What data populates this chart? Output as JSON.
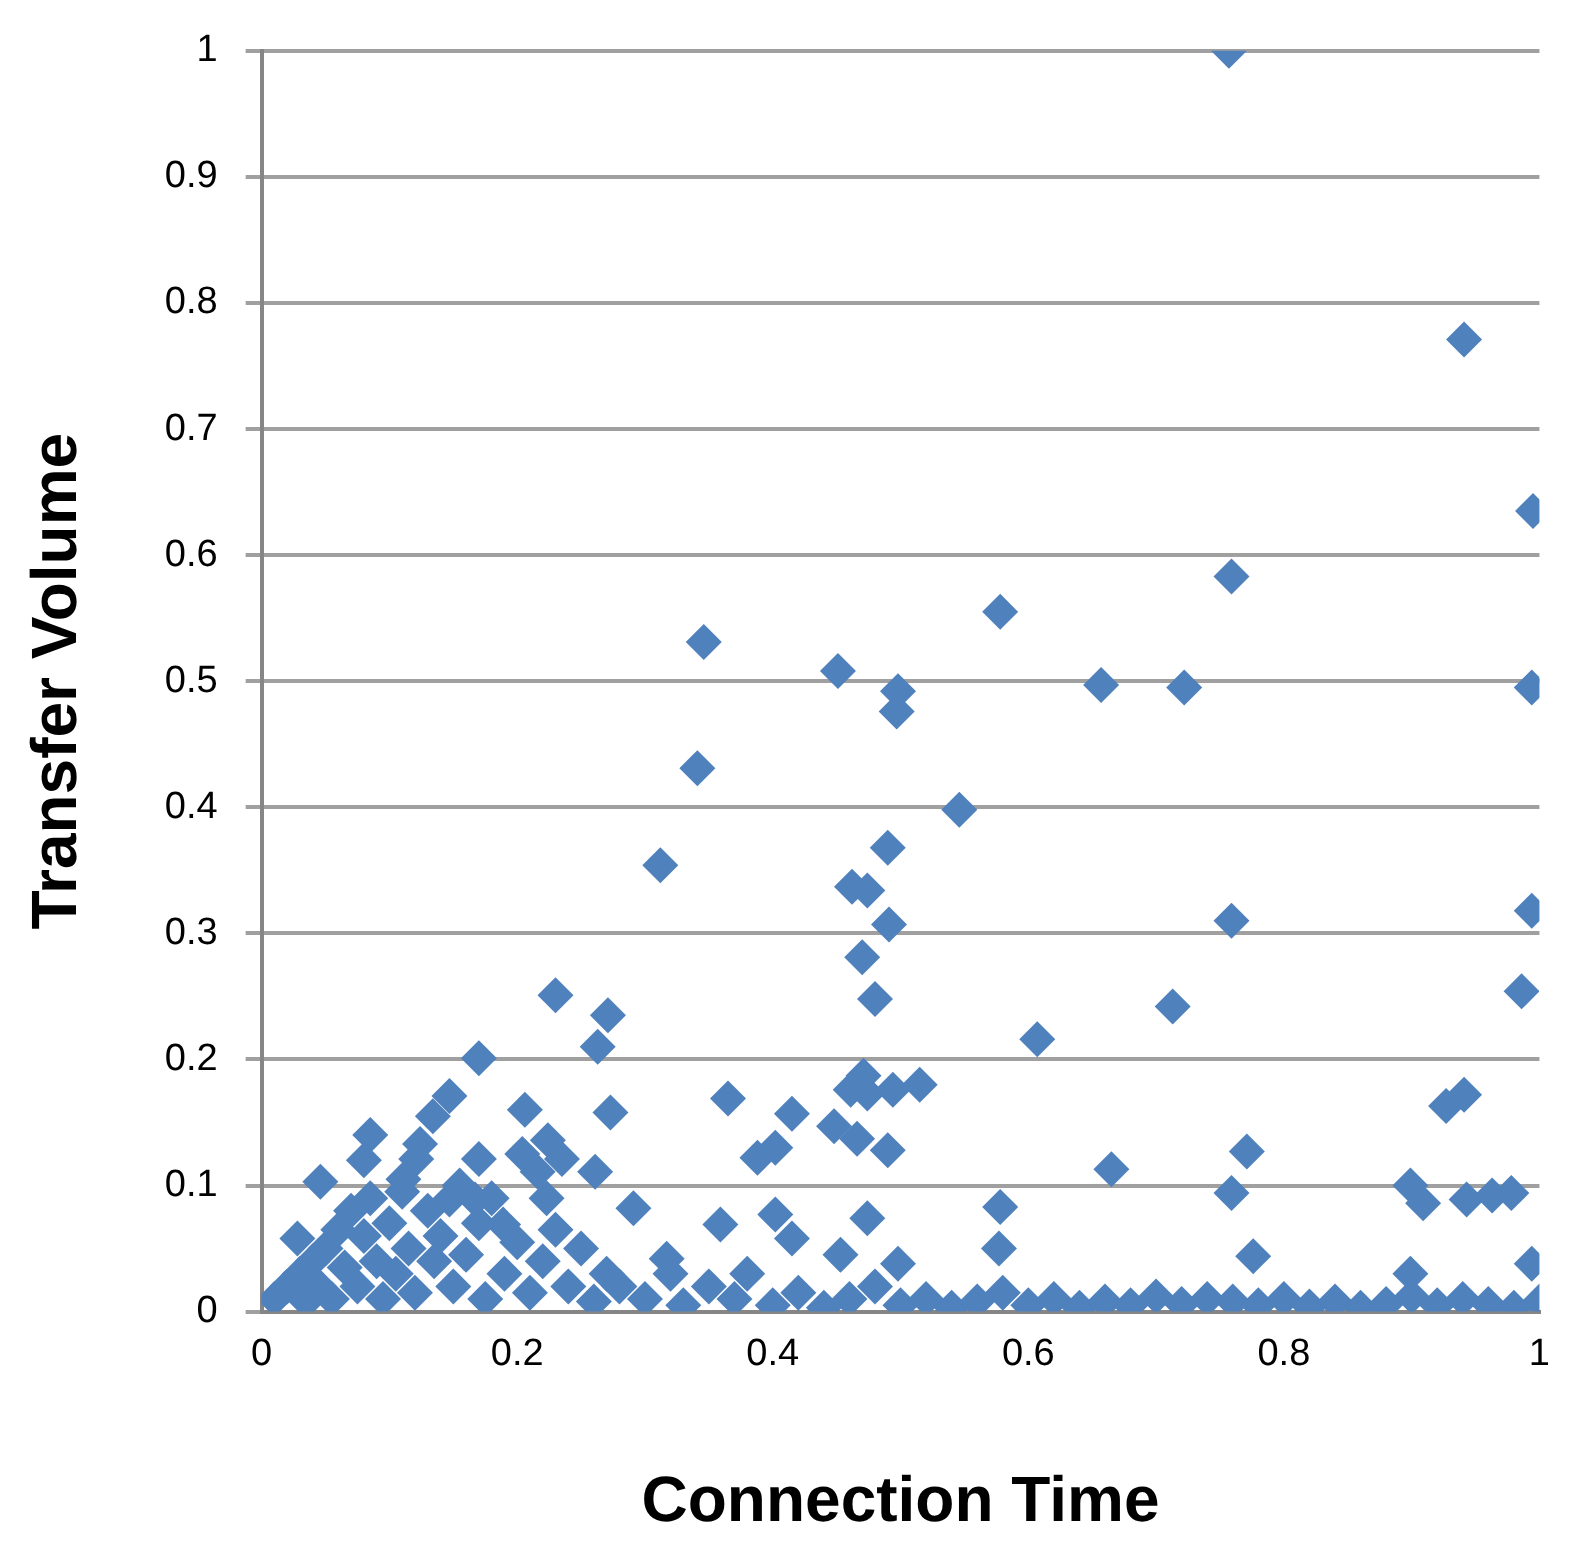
{
  "chart_data": {
    "type": "scatter",
    "xlabel": "Connection Time",
    "ylabel": "Transfer Volume",
    "marker": "diamond",
    "grid": "y",
    "legend": false,
    "xlim": [
      0,
      1
    ],
    "xticks": [
      0,
      0.2,
      0.4,
      0.6,
      0.8,
      1
    ],
    "ylim": [
      0,
      1
    ],
    "yticks": [
      0,
      0.1,
      0.2,
      0.3,
      0.4,
      0.5,
      0.6,
      0.7,
      0.8,
      0.9,
      1
    ],
    "series": [
      {
        "color": "#4f81bd",
        "x": [
          0.757,
          0.941,
          0.995,
          0.346,
          0.451,
          0.578,
          0.759,
          0.498,
          0.497,
          0.657,
          0.722,
          0.994,
          0.341,
          0.546,
          0.312,
          0.49,
          0.462,
          0.474,
          0.491,
          0.759,
          0.994,
          0.47,
          0.48,
          0.986,
          0.713,
          0.23,
          0.271,
          0.607,
          0.365,
          0.17,
          0.263,
          0.206,
          0.147,
          0.134,
          0.273,
          0.415,
          0.927,
          0.941,
          0.771,
          0.665,
          0.471,
          0.461,
          0.474,
          0.494,
          0.515,
          0.448,
          0.466,
          0.49,
          0.388,
          0.402,
          0.474,
          0.291,
          0.216,
          0.17,
          0.121,
          0.085,
          0.124,
          0.046,
          0.224,
          0.261,
          0.359,
          0.317,
          0.402,
          0.08,
          0.111,
          0.147,
          0.223,
          0.204,
          0.235,
          0.167,
          0.189,
          0.028,
          0.759,
          0.899,
          0.909,
          0.943,
          0.963,
          0.978,
          0.578,
          0.577,
          0.453,
          0.498,
          0.776,
          0.994,
          0.415,
          0.899,
          0.01,
          0.02,
          0.03,
          0.035,
          0.04,
          0.045,
          0.05,
          0.055,
          0.06,
          0.065,
          0.07,
          0.075,
          0.08,
          0.085,
          0.09,
          0.095,
          0.1,
          0.105,
          0.11,
          0.115,
          0.12,
          0.13,
          0.135,
          0.14,
          0.15,
          0.155,
          0.16,
          0.17,
          0.175,
          0.18,
          0.19,
          0.2,
          0.21,
          0.22,
          0.23,
          0.24,
          0.25,
          0.26,
          0.27,
          0.28,
          0.3,
          0.32,
          0.33,
          0.35,
          0.37,
          0.38,
          0.4,
          0.42,
          0.44,
          0.46,
          0.48,
          0.5,
          0.52,
          0.54,
          0.56,
          0.58,
          0.6,
          0.62,
          0.64,
          0.66,
          0.68,
          0.7,
          0.72,
          0.74,
          0.76,
          0.78,
          0.8,
          0.82,
          0.84,
          0.86,
          0.88,
          0.9,
          0.92,
          0.94,
          0.96,
          0.98,
          1
        ],
        "values": [
          1,
          0.771,
          0.635,
          0.531,
          0.508,
          0.555,
          0.583,
          0.492,
          0.476,
          0.497,
          0.495,
          0.495,
          0.431,
          0.398,
          0.354,
          0.368,
          0.337,
          0.334,
          0.307,
          0.31,
          0.318,
          0.281,
          0.248,
          0.254,
          0.242,
          0.251,
          0.235,
          0.216,
          0.169,
          0.201,
          0.21,
          0.16,
          0.171,
          0.155,
          0.158,
          0.157,
          0.163,
          0.172,
          0.127,
          0.113,
          0.187,
          0.176,
          0.173,
          0.176,
          0.18,
          0.147,
          0.137,
          0.128,
          0.122,
          0.13,
          0.074,
          0.082,
          0.111,
          0.121,
          0.121,
          0.14,
          0.133,
          0.103,
          0.136,
          0.111,
          0.069,
          0.042,
          0.077,
          0.12,
          0.105,
          0.089,
          0.09,
          0.125,
          0.121,
          0.089,
          0.069,
          0.058,
          0.094,
          0.1,
          0.086,
          0.089,
          0.092,
          0.094,
          0.083,
          0.05,
          0.045,
          0.038,
          0.044,
          0.038,
          0.058,
          0.03,
          0.01,
          0.02,
          0.03,
          0.008,
          0.04,
          0.02,
          0.05,
          0.01,
          0.065,
          0.035,
          0.08,
          0.02,
          0.06,
          0.09,
          0.04,
          0.01,
          0.07,
          0.03,
          0.095,
          0.05,
          0.015,
          0.08,
          0.04,
          0.06,
          0.02,
          0.1,
          0.045,
          0.07,
          0.01,
          0.09,
          0.03,
          0.055,
          0.015,
          0.04,
          0.065,
          0.02,
          0.05,
          0.008,
          0.03,
          0.02,
          0.01,
          0.03,
          0.005,
          0.02,
          0.01,
          0.03,
          0.005,
          0.015,
          0.003,
          0.01,
          0.02,
          0.005,
          0.01,
          0.003,
          0.008,
          0.015,
          0.005,
          0.01,
          0.003,
          0.008,
          0.005,
          0.012,
          0.006,
          0.01,
          0.008,
          0.005,
          0.01,
          0.004,
          0.008,
          0.003,
          0.006,
          0.012,
          0.005,
          0.01,
          0.006,
          0.003,
          0.008
        ]
      }
    ]
  }
}
